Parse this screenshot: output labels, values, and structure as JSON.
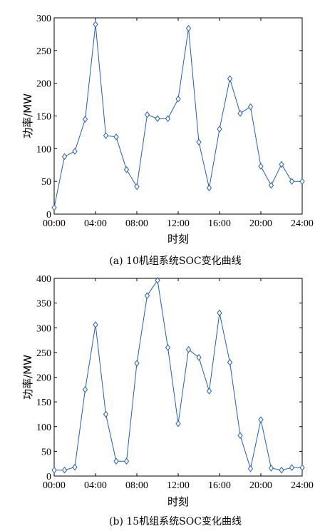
{
  "chart_data": [
    {
      "type": "line",
      "caption": "(a) 10机组系统SOC变化曲线",
      "xlabel": "时刻",
      "ylabel": "功率/MW",
      "xlim": [
        0,
        24
      ],
      "ylim": [
        0,
        300
      ],
      "xticks": [
        "00:00",
        "04:00",
        "08:00",
        "12:00",
        "16:00",
        "20:00",
        "24:00"
      ],
      "yticks": [
        0,
        50,
        100,
        150,
        200,
        250,
        300
      ],
      "grid": false,
      "line_color": "#1f5fbf",
      "marker": "diamond",
      "series": [
        {
          "x": [
            0,
            1,
            2,
            3,
            4,
            5,
            6,
            7,
            8,
            9,
            10,
            11,
            12,
            13,
            14,
            15,
            16,
            17,
            18,
            19,
            20,
            21,
            22,
            23,
            24
          ],
          "values": [
            10,
            88,
            96,
            145,
            290,
            120,
            118,
            68,
            42,
            152,
            146,
            146,
            176,
            284,
            110,
            40,
            130,
            207,
            154,
            164,
            73,
            44,
            76,
            50,
            50
          ]
        }
      ]
    },
    {
      "type": "line",
      "caption": "(b) 15机组系统SOC变化曲线",
      "xlabel": "时刻",
      "ylabel": "功率/MW",
      "xlim": [
        0,
        24
      ],
      "ylim": [
        0,
        400
      ],
      "xticks": [
        "00:00",
        "04:00",
        "08:00",
        "12:00",
        "16:00",
        "20:00",
        "24:00"
      ],
      "yticks": [
        0,
        50,
        100,
        150,
        200,
        250,
        300,
        350,
        400
      ],
      "grid": false,
      "line_color": "#1f5fbf",
      "marker": "diamond",
      "series": [
        {
          "x": [
            0,
            1,
            2,
            3,
            4,
            5,
            6,
            7,
            8,
            9,
            10,
            11,
            12,
            13,
            14,
            15,
            16,
            17,
            18,
            19,
            20,
            21,
            22,
            23,
            24
          ],
          "values": [
            12,
            12,
            18,
            175,
            306,
            125,
            30,
            30,
            228,
            365,
            396,
            260,
            106,
            256,
            240,
            172,
            330,
            230,
            82,
            15,
            114,
            16,
            12,
            17,
            17
          ]
        }
      ]
    }
  ]
}
